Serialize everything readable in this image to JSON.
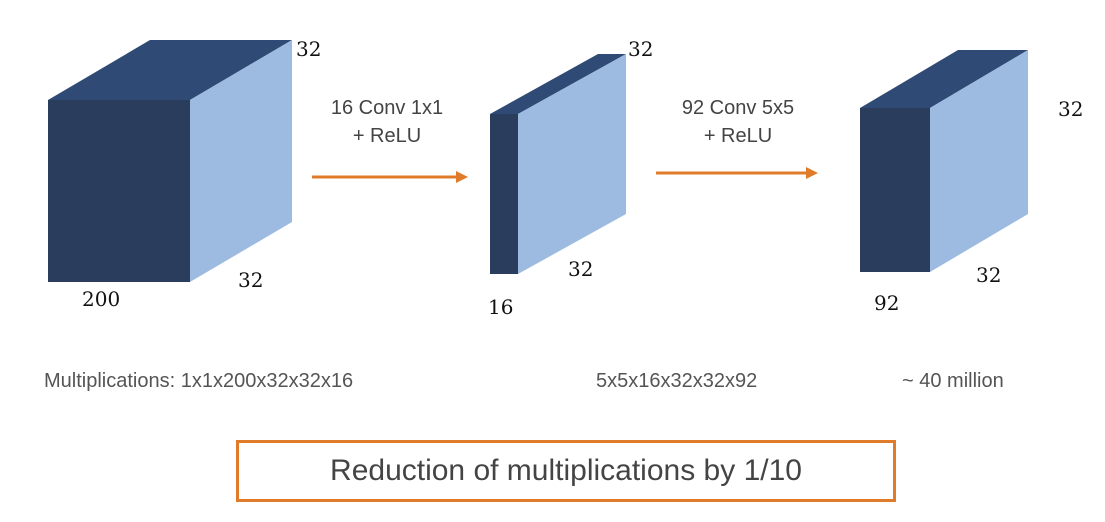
{
  "colors": {
    "front": "#2a3d5c",
    "top": "#2f4a74",
    "side": "#9dbbe0",
    "arrow": "#e07b29",
    "box_border": "#e07b29"
  },
  "block1": {
    "depth_label": "200",
    "height_label": "32",
    "width_label": "32"
  },
  "op1": {
    "line1": "16 Conv 1x1",
    "line2": "+ ReLU"
  },
  "block2": {
    "depth_label": "16",
    "height_label": "32",
    "width_label": "32"
  },
  "op2": {
    "line1": "92 Conv 5x5",
    "line2": "+ ReLU"
  },
  "block3": {
    "depth_label": "92",
    "height_label": "32",
    "width_label": "32"
  },
  "multiplications": {
    "label_and_first": "Multiplications: 1x1x200x32x32x16",
    "second": "5x5x16x32x32x92",
    "total": "~ 40 million"
  },
  "conclusion": "Reduction of multiplications by 1/10"
}
